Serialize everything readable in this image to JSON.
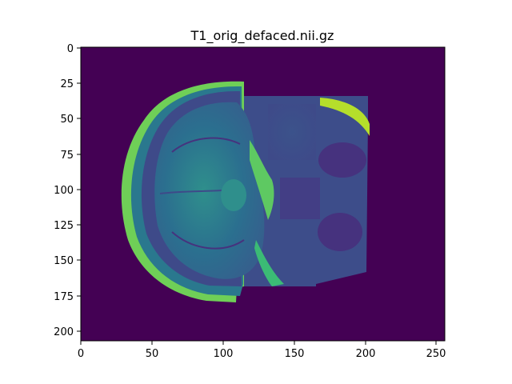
{
  "figure": {
    "title": "T1_orig_defaced.nii.gz",
    "colormap": "viridis",
    "background_color": "#440154",
    "x_ticks": [
      "0",
      "50",
      "100",
      "150",
      "200",
      "250"
    ],
    "y_ticks": [
      "0",
      "25",
      "50",
      "75",
      "100",
      "125",
      "150",
      "175",
      "200"
    ],
    "xlim": [
      0,
      256
    ],
    "ylim": [
      208,
      0
    ],
    "content": "axial MRI brain slice"
  }
}
